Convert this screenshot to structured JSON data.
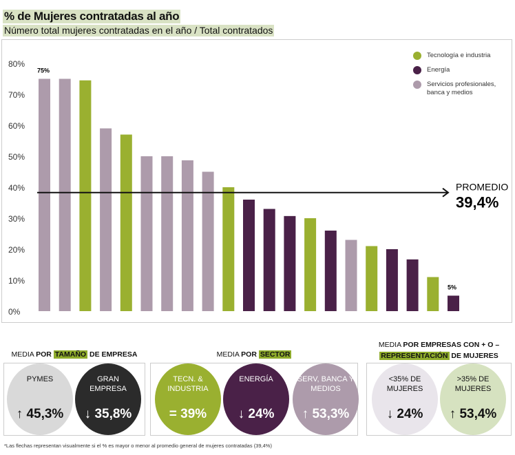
{
  "header": {
    "title": "% de Mujeres contratadas al año",
    "subtitle": "Número total mujeres contratadas en el año / Total contratados"
  },
  "chart_data": {
    "type": "bar",
    "title": "% de Mujeres contratadas al año",
    "ylim": [
      0,
      80
    ],
    "yticks": [
      "0%",
      "10%",
      "20%",
      "30%",
      "40%",
      "50%",
      "60%",
      "70%",
      "80%"
    ],
    "legend_position": "top-right",
    "legend": [
      {
        "key": "T",
        "label": "Tecnología e industria",
        "color": "#9ab030"
      },
      {
        "key": "E",
        "label": "Energía",
        "color": "#4a2148"
      },
      {
        "key": "S",
        "label": "Servicios profesionales, banca y medios",
        "color": "#ad9bab"
      }
    ],
    "values": [
      75,
      75,
      74.5,
      59,
      57,
      50,
      50,
      48.7,
      45,
      40,
      36,
      33,
      30.7,
      30,
      26,
      23,
      21,
      20,
      16.7,
      11,
      5
    ],
    "sectors": [
      "S",
      "S",
      "T",
      "S",
      "T",
      "S",
      "S",
      "S",
      "S",
      "T",
      "E",
      "E",
      "E",
      "T",
      "E",
      "S",
      "T",
      "E",
      "E",
      "T",
      "E"
    ],
    "data_labels": {
      "first": "75%",
      "last": "5%"
    },
    "average": {
      "value": 39.4,
      "label": "PROMEDIO",
      "value_label": "39,4%"
    }
  },
  "sections": {
    "size": {
      "head_pre": "MEDIA ",
      "head_bold": "POR ",
      "head_hl": "TAMAÑO",
      "head_post": " DE EMPRESA",
      "items": [
        {
          "label": "PYMES",
          "arrow": "↑",
          "value": "45,3%"
        },
        {
          "label": "GRAN EMPRESA",
          "arrow": "↓",
          "value": "35,8%"
        }
      ]
    },
    "sector": {
      "head_pre": "MEDIA ",
      "head_bold": "POR ",
      "head_hl": "SECTOR",
      "items": [
        {
          "label": "TECN. & INDUSTRIA",
          "arrow": "=",
          "value": "39%"
        },
        {
          "label": "ENERGÍA",
          "arrow": "↓",
          "value": "24%"
        },
        {
          "label": "SERV, BANCA Y MEDIOS",
          "arrow": "↑",
          "value": "53,3%"
        }
      ]
    },
    "representation": {
      "head_pre": "MEDIA ",
      "head_bold": "POR EMPRESAS CON + O –",
      "head_hl": "REPRESENTACIÓN",
      "head_post": " DE MUJERES",
      "items": [
        {
          "label": "<35% DE MUJERES",
          "arrow": "↓",
          "value": "24%"
        },
        {
          "label": ">35% DE MUJERES",
          "arrow": "↑",
          "value": "53,4%"
        }
      ]
    }
  },
  "footnote": "*Las flechas representan visualmente si el % es mayor o menor al promedio general de mujeres contratadas (39,4%)"
}
